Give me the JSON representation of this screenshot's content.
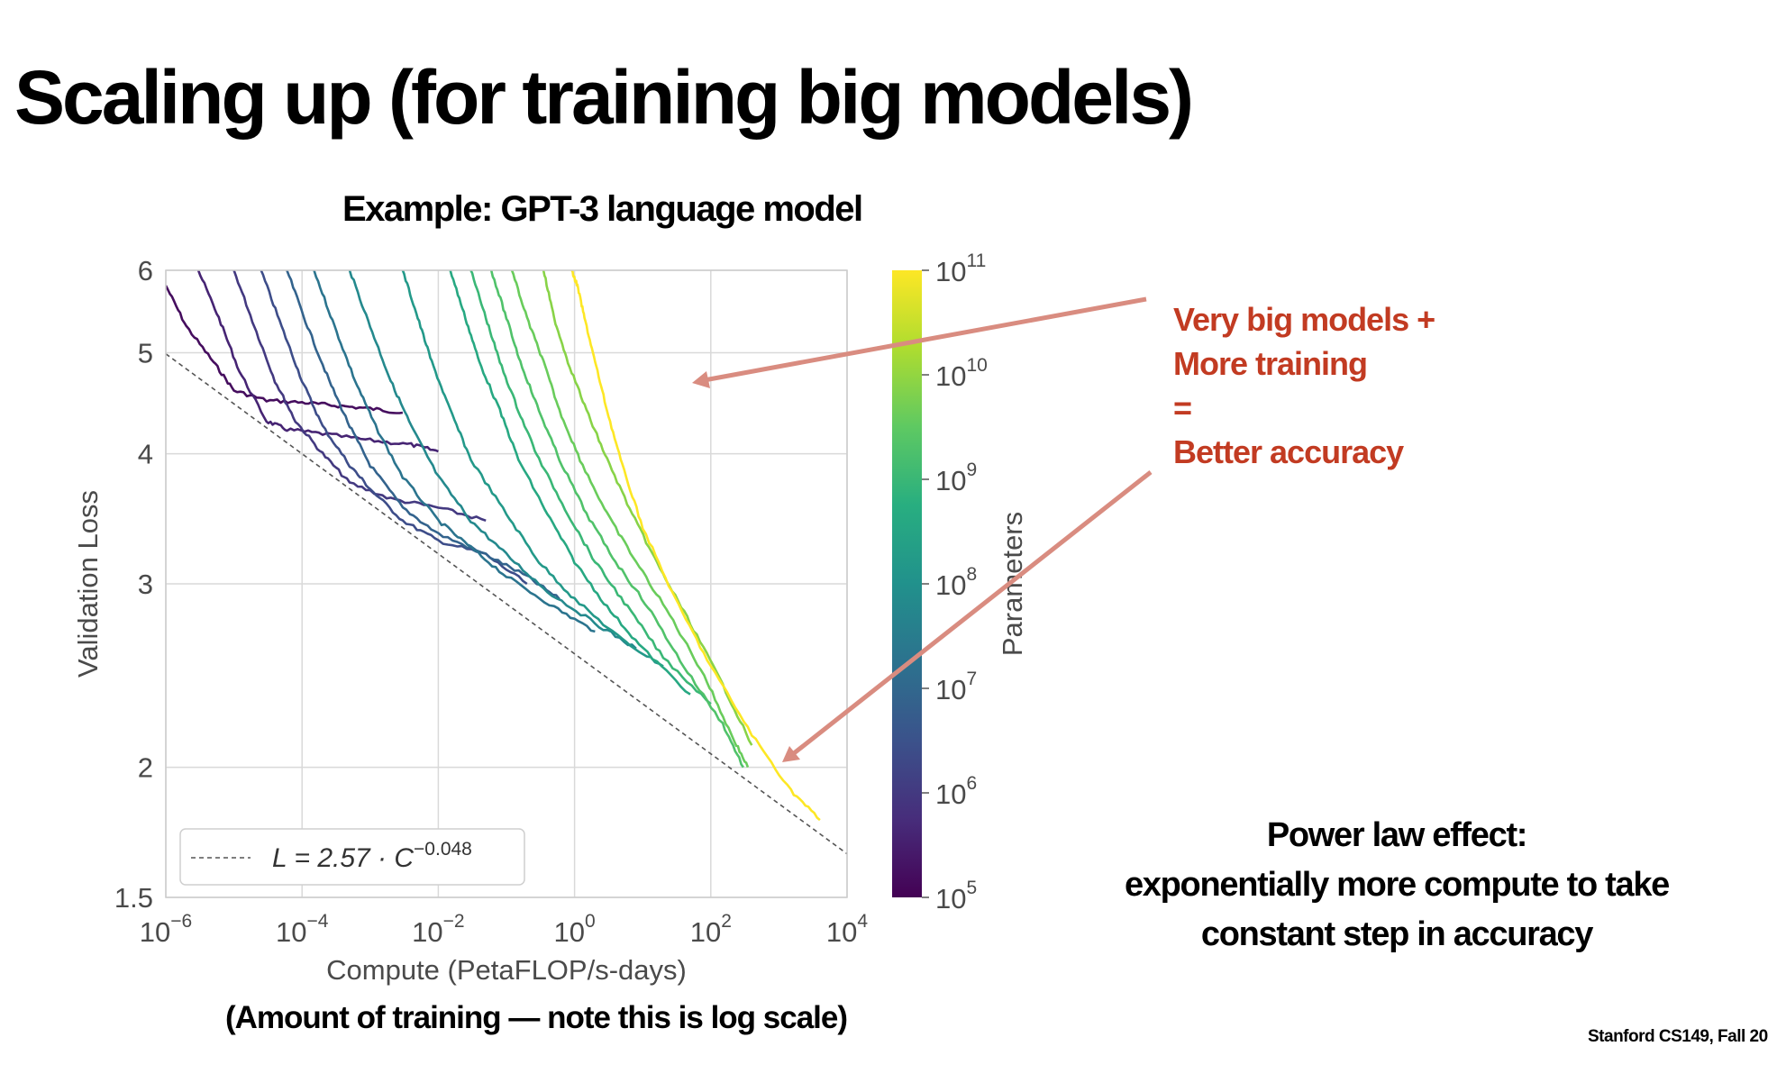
{
  "slide": {
    "title": "Scaling up (for training big models)",
    "chart_heading": "Example: GPT-3 language model",
    "xaxis_note": "(Amount of training — note this is log scale)",
    "callout_lines": [
      "Very big models +",
      "More training",
      "=",
      "Better accuracy"
    ],
    "power_law_lines": [
      "Power law effect:",
      "exponentially more compute to take",
      "constant step in accuracy"
    ],
    "footer": "Stanford CS149, Fall 20"
  },
  "colors": {
    "callout_text": "#c23b22",
    "arrow": "#d98c80",
    "fit_line": "#555555",
    "grid": "#d9d9d9"
  },
  "chart_data": {
    "type": "line",
    "xlabel": "Compute (PetaFLOP/s-days)",
    "ylabel": "Validation Loss",
    "xscale": "log",
    "yscale": "log",
    "xlim": [
      1e-06,
      10000.0
    ],
    "ylim": [
      1.5,
      6
    ],
    "x_tick_exponents": [
      "−6",
      "−4",
      "−2",
      "0",
      "2",
      "4"
    ],
    "y_ticks": [
      "1.5",
      "2",
      "3",
      "4",
      "5",
      "6"
    ],
    "grid": true,
    "fit_line": {
      "legend_lhs": "L = 2.57 · C",
      "legend_exponent": "−0.048",
      "legend_position": "bottom-left",
      "coefficient": 2.57,
      "exponent": -0.048
    },
    "colorbar": {
      "label": "Parameters",
      "tick_exponents": [
        "5",
        "6",
        "7",
        "8",
        "9",
        "10",
        "11"
      ],
      "range_log10": [
        5,
        11
      ],
      "colormap": [
        "#440154",
        "#472d7b",
        "#3b528b",
        "#2c728e",
        "#21918c",
        "#28ae80",
        "#5ec962",
        "#addc30",
        "#fde725"
      ]
    },
    "series": [
      {
        "log10_params": 5.2,
        "points": [
          [
            1e-06,
            5.8
          ],
          [
            2e-06,
            5.3
          ],
          [
            5e-06,
            4.9
          ],
          [
            1e-05,
            4.6
          ],
          [
            3e-05,
            4.5
          ],
          [
            0.0001,
            4.48
          ],
          [
            0.0003,
            4.45
          ],
          [
            0.001,
            4.42
          ],
          [
            0.003,
            4.38
          ]
        ]
      },
      {
        "log10_params": 5.6,
        "points": [
          [
            3e-06,
            6.0
          ],
          [
            6e-06,
            5.4
          ],
          [
            1.2e-05,
            4.8
          ],
          [
            3e-05,
            4.3
          ],
          [
            6e-05,
            4.22
          ],
          [
            0.0002,
            4.18
          ],
          [
            0.001,
            4.12
          ],
          [
            0.004,
            4.08
          ],
          [
            0.01,
            4.02
          ]
        ]
      },
      {
        "log10_params": 6.0,
        "points": [
          [
            1e-05,
            6.0
          ],
          [
            2e-05,
            5.3
          ],
          [
            4e-05,
            4.7
          ],
          [
            8e-05,
            4.3
          ],
          [
            0.0002,
            4.0
          ],
          [
            0.0005,
            3.75
          ],
          [
            0.002,
            3.62
          ],
          [
            0.01,
            3.55
          ],
          [
            0.05,
            3.45
          ]
        ]
      },
      {
        "log10_params": 6.4,
        "points": [
          [
            2.5e-05,
            6.0
          ],
          [
            5e-05,
            5.3
          ],
          [
            0.0001,
            4.7
          ],
          [
            0.0002,
            4.25
          ],
          [
            0.0005,
            3.9
          ],
          [
            0.001,
            3.7
          ],
          [
            0.003,
            3.45
          ],
          [
            0.01,
            3.3
          ],
          [
            0.05,
            3.2
          ],
          [
            0.2,
            3.0
          ]
        ]
      },
      {
        "log10_params": 6.9,
        "points": [
          [
            6e-05,
            6.0
          ],
          [
            0.00012,
            5.3
          ],
          [
            0.00025,
            4.7
          ],
          [
            0.0005,
            4.25
          ],
          [
            0.001,
            3.9
          ],
          [
            0.003,
            3.55
          ],
          [
            0.01,
            3.35
          ],
          [
            0.05,
            3.2
          ],
          [
            0.2,
            3.05
          ],
          [
            0.6,
            2.9
          ]
        ]
      },
      {
        "log10_params": 7.3,
        "points": [
          [
            0.00015,
            6.0
          ],
          [
            0.0003,
            5.3
          ],
          [
            0.0006,
            4.7
          ],
          [
            0.0012,
            4.25
          ],
          [
            0.003,
            3.8
          ],
          [
            0.01,
            3.45
          ],
          [
            0.03,
            3.25
          ],
          [
            0.1,
            3.05
          ],
          [
            0.5,
            2.85
          ],
          [
            2,
            2.7
          ]
        ]
      },
      {
        "log10_params": 7.8,
        "points": [
          [
            0.0005,
            6.0
          ],
          [
            0.001,
            5.3
          ],
          [
            0.002,
            4.7
          ],
          [
            0.004,
            4.25
          ],
          [
            0.01,
            3.8
          ],
          [
            0.03,
            3.45
          ],
          [
            0.1,
            3.2
          ],
          [
            0.4,
            2.95
          ],
          [
            2,
            2.75
          ],
          [
            8,
            2.6
          ]
        ]
      },
      {
        "log10_params": 8.2,
        "points": [
          [
            0.003,
            6.0
          ],
          [
            0.005,
            5.4
          ],
          [
            0.008,
            4.9
          ],
          [
            0.015,
            4.4
          ],
          [
            0.03,
            3.95
          ],
          [
            0.1,
            3.5
          ],
          [
            0.3,
            3.15
          ],
          [
            1,
            2.9
          ],
          [
            5,
            2.65
          ],
          [
            20,
            2.5
          ]
        ]
      },
      {
        "log10_params": 8.6,
        "points": [
          [
            0.015,
            6.0
          ],
          [
            0.025,
            5.4
          ],
          [
            0.04,
            4.9
          ],
          [
            0.08,
            4.4
          ],
          [
            0.15,
            3.95
          ],
          [
            0.4,
            3.5
          ],
          [
            1,
            3.15
          ],
          [
            3,
            2.85
          ],
          [
            10,
            2.6
          ],
          [
            50,
            2.35
          ]
        ]
      },
      {
        "log10_params": 9.0,
        "points": [
          [
            0.03,
            6.0
          ],
          [
            0.05,
            5.4
          ],
          [
            0.08,
            4.9
          ],
          [
            0.15,
            4.4
          ],
          [
            0.3,
            3.95
          ],
          [
            0.8,
            3.5
          ],
          [
            2,
            3.15
          ],
          [
            6,
            2.85
          ],
          [
            20,
            2.55
          ],
          [
            100,
            2.3
          ]
        ]
      },
      {
        "log10_params": 9.3,
        "points": [
          [
            0.06,
            6.0
          ],
          [
            0.1,
            5.4
          ],
          [
            0.16,
            4.9
          ],
          [
            0.3,
            4.4
          ],
          [
            0.6,
            3.95
          ],
          [
            1.5,
            3.5
          ],
          [
            4,
            3.15
          ],
          [
            12,
            2.85
          ],
          [
            40,
            2.5
          ],
          [
            150,
            2.2
          ],
          [
            300,
            2.0
          ]
        ]
      },
      {
        "log10_params": 9.6,
        "points": [
          [
            0.12,
            6.0
          ],
          [
            0.2,
            5.4
          ],
          [
            0.35,
            4.9
          ],
          [
            0.6,
            4.4
          ],
          [
            1.2,
            3.95
          ],
          [
            3,
            3.5
          ],
          [
            8,
            3.15
          ],
          [
            25,
            2.8
          ],
          [
            80,
            2.45
          ],
          [
            200,
            2.15
          ],
          [
            350,
            2.0
          ]
        ]
      },
      {
        "log10_params": 9.9,
        "points": [
          [
            0.35,
            6.0
          ],
          [
            0.5,
            5.4
          ],
          [
            0.8,
            4.9
          ],
          [
            1.5,
            4.4
          ],
          [
            3,
            3.95
          ],
          [
            7,
            3.5
          ],
          [
            18,
            3.1
          ],
          [
            50,
            2.75
          ],
          [
            150,
            2.4
          ],
          [
            400,
            2.1
          ]
        ]
      },
      {
        "log10_params": 11.2,
        "points": [
          [
            0.9,
            6.0
          ],
          [
            1.1,
            5.8
          ],
          [
            1.4,
            5.4
          ],
          [
            2,
            4.9
          ],
          [
            3,
            4.4
          ],
          [
            5,
            3.9
          ],
          [
            10,
            3.4
          ],
          [
            30,
            2.9
          ],
          [
            100,
            2.5
          ],
          [
            400,
            2.15
          ],
          [
            1500,
            1.9
          ],
          [
            4000,
            1.78
          ]
        ]
      }
    ]
  }
}
